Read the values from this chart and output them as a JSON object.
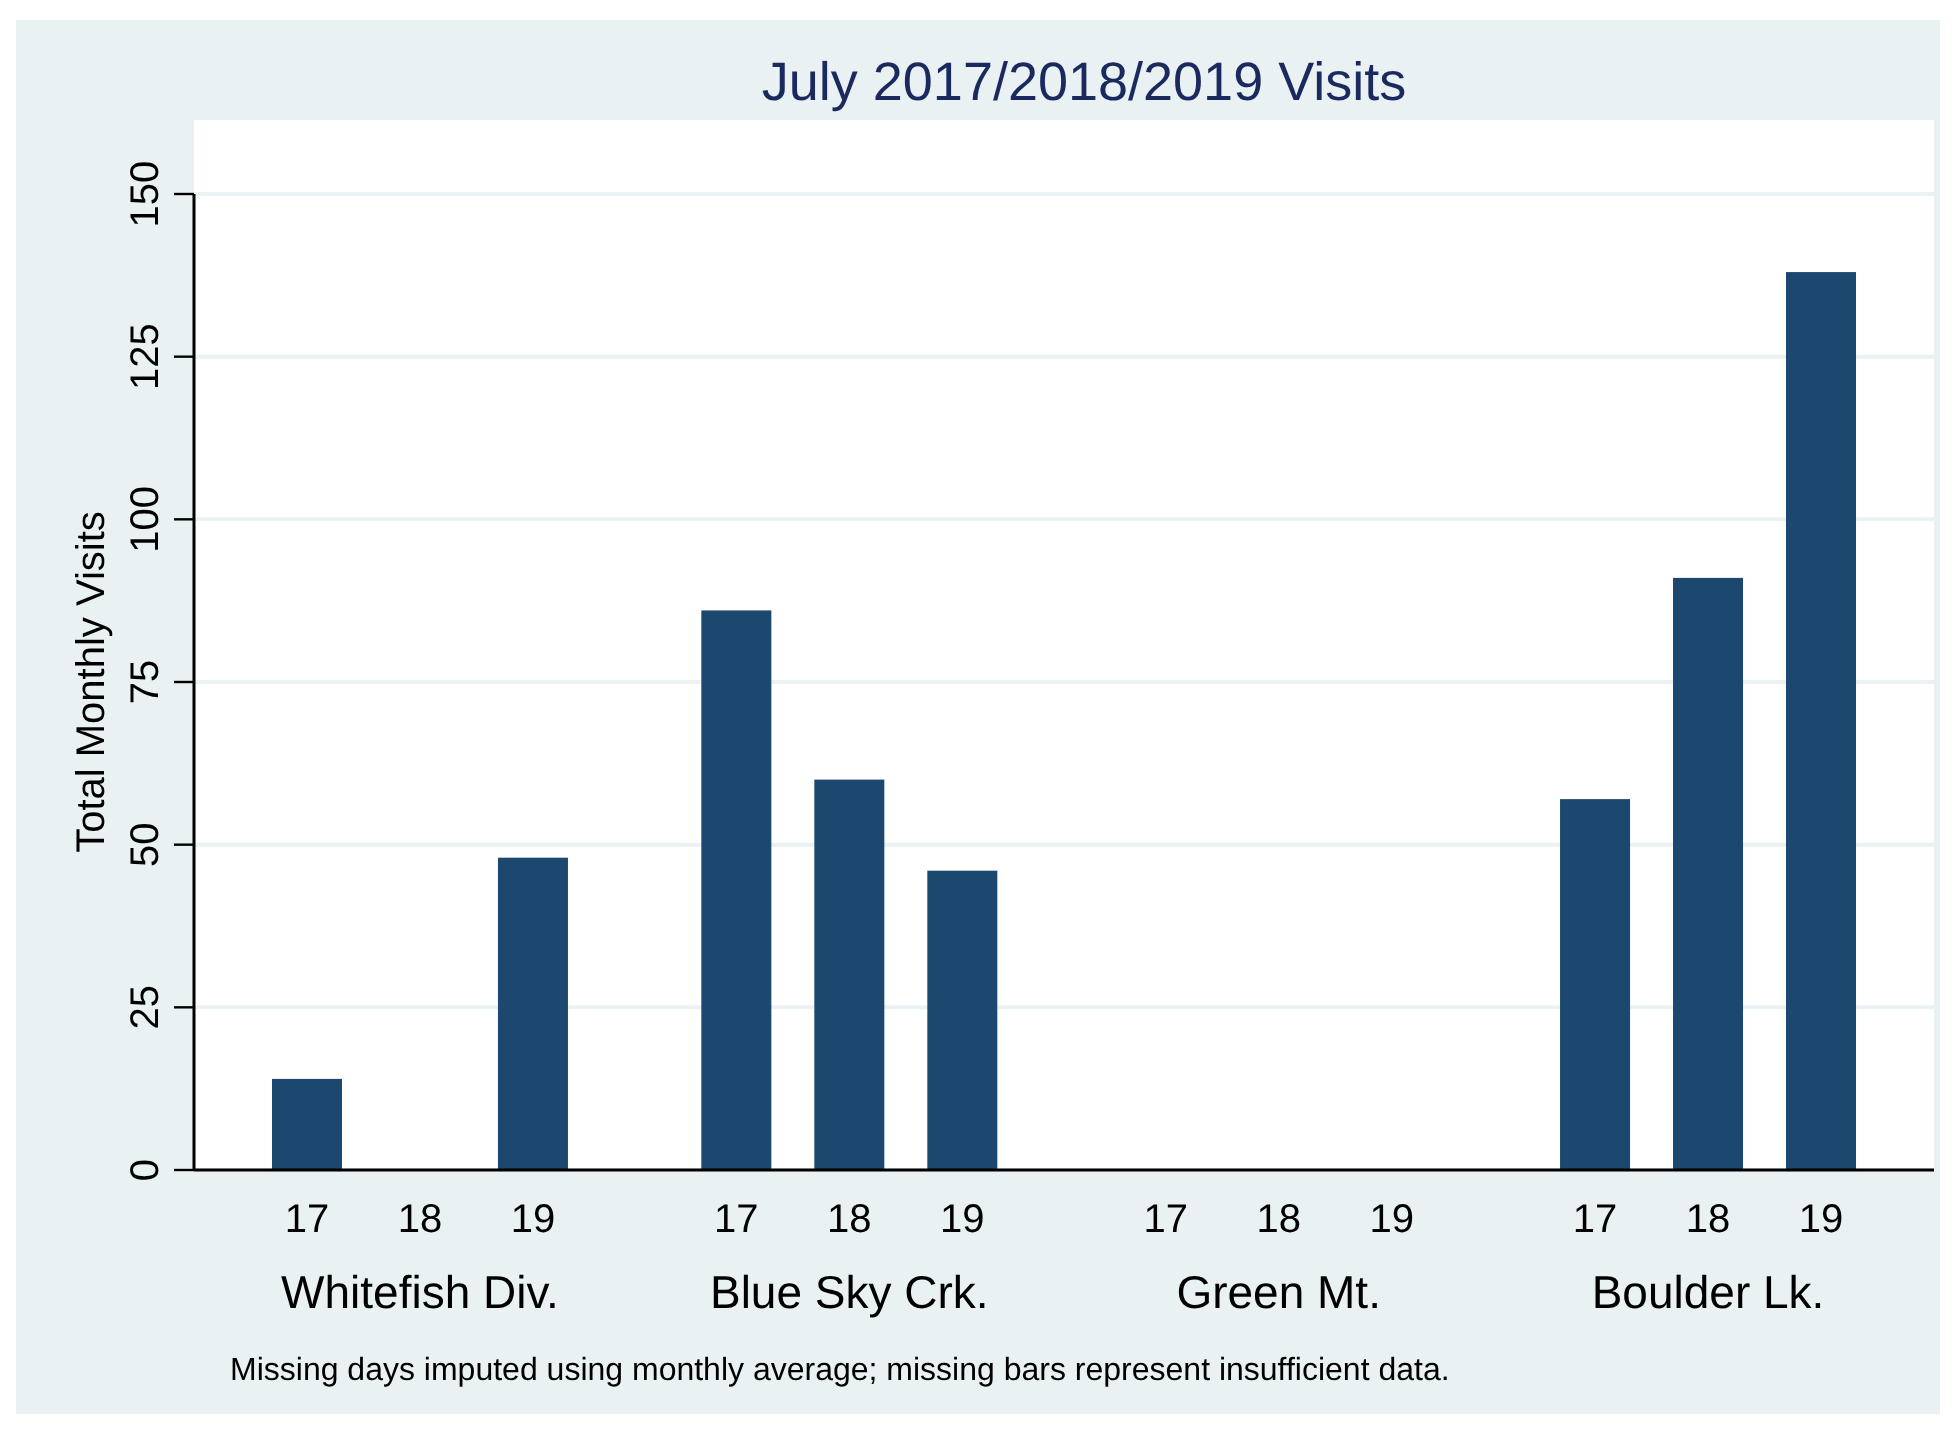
{
  "chart_data": {
    "type": "bar",
    "title": "July 2017/2018/2019 Visits",
    "ylabel": "Total Monthly Visits",
    "categories": [
      "17",
      "18",
      "19",
      "17",
      "18",
      "19",
      "17",
      "18",
      "19",
      "17",
      "18",
      "19"
    ],
    "values": [
      14,
      null,
      48,
      86,
      60,
      46,
      null,
      null,
      null,
      57,
      91,
      138
    ],
    "color": "#1c476e",
    "ylim": [
      0,
      150
    ],
    "yticks": [
      0,
      25,
      50,
      75,
      100,
      125,
      150
    ],
    "grid": "y",
    "annotations": [
      "Whitefish Div.",
      "Blue Sky Crk.",
      "Green Mt.",
      "Boulder Lk.",
      "Missing days imputed using monthly average; missing bars represent insufficient data."
    ]
  }
}
